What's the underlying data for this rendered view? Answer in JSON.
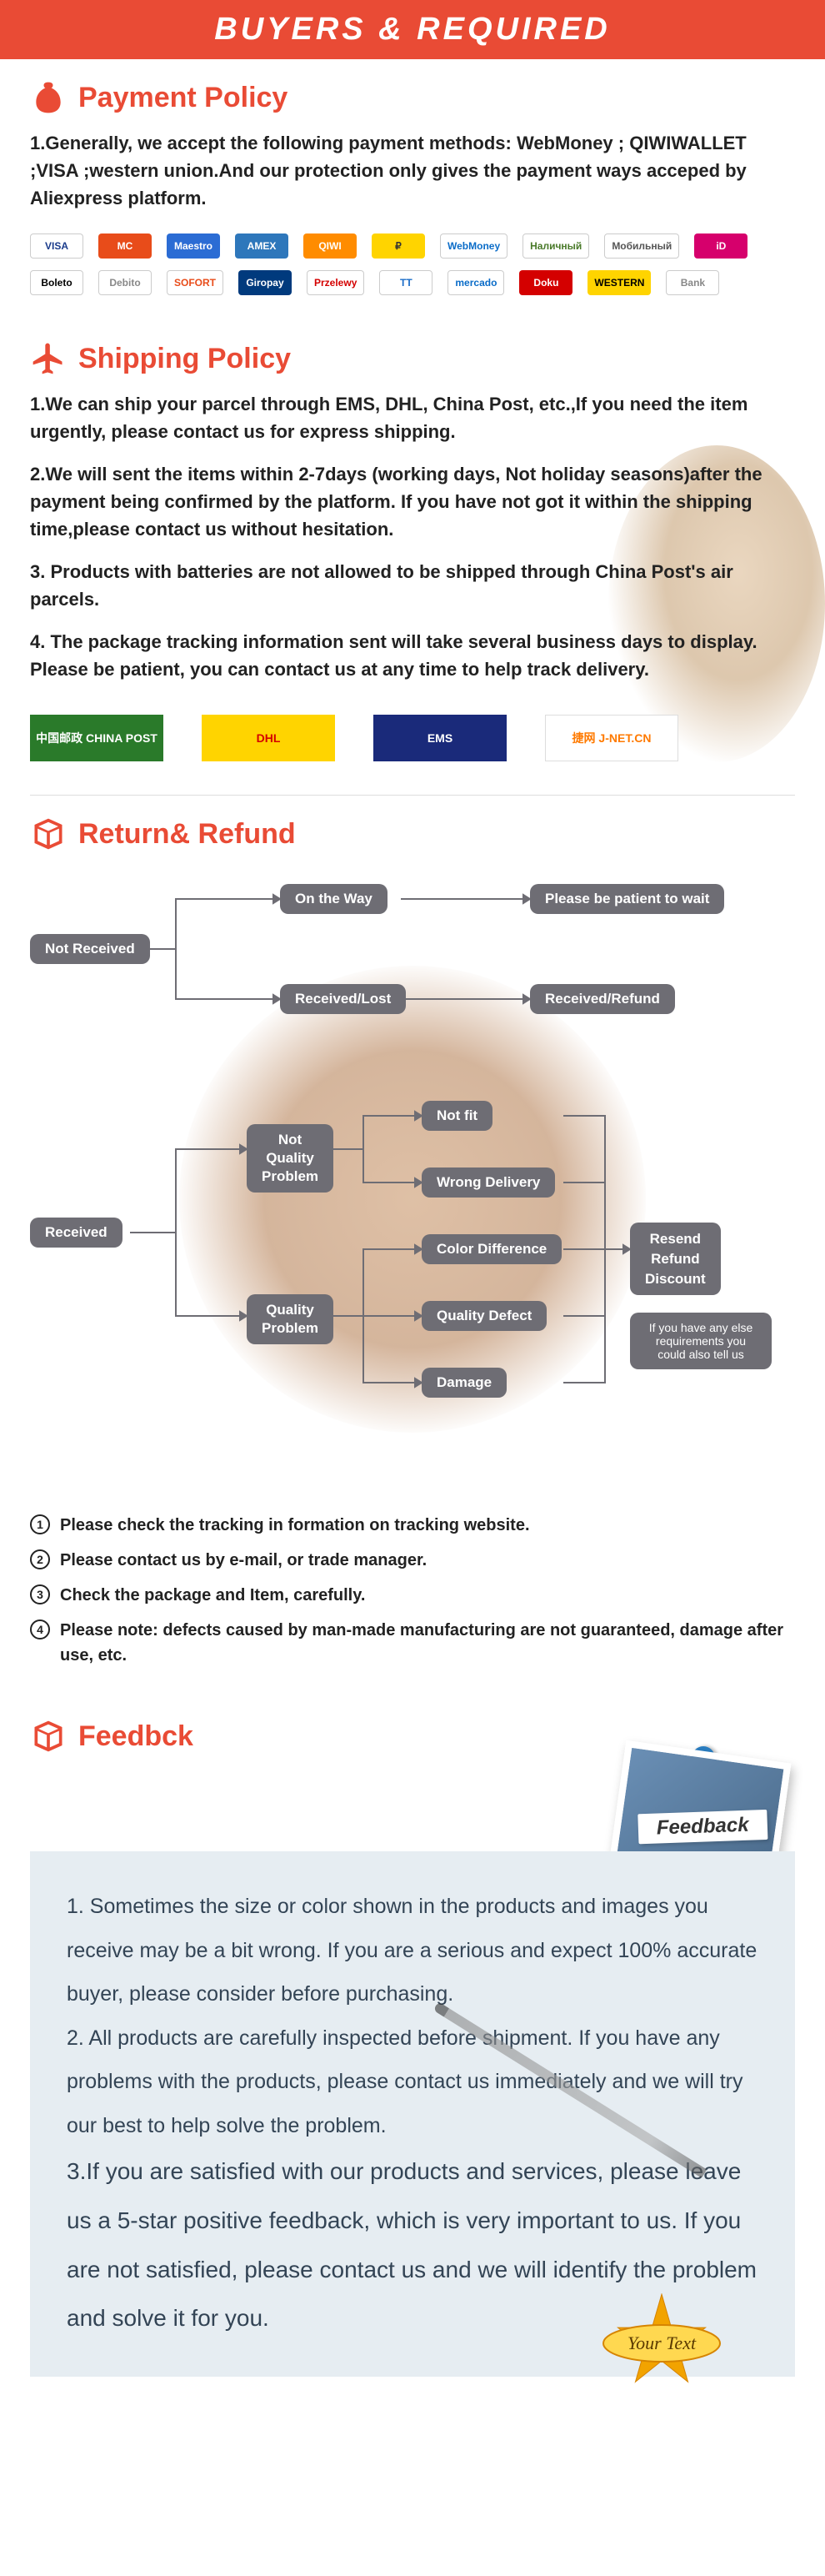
{
  "banner": "BUYERS & REQUIRED",
  "payment": {
    "title": "Payment Policy",
    "text": "1.Generally, we accept the following payment methods: WebMoney ; QIWIWALLET ;VISA ;western union.And our protection only gives the payment ways acceped by Aliexpress platform.",
    "logos": [
      {
        "t": "VISA",
        "bg": "#fff",
        "fg": "#1a3b8b"
      },
      {
        "t": "MC",
        "bg": "#e84c1a",
        "fg": "#fff"
      },
      {
        "t": "Maestro",
        "bg": "#2b6cd4",
        "fg": "#fff"
      },
      {
        "t": "AMEX",
        "bg": "#2e77bb",
        "fg": "#fff"
      },
      {
        "t": "QIWI",
        "bg": "#ff8c00",
        "fg": "#fff"
      },
      {
        "t": "₽",
        "bg": "#ffd400",
        "fg": "#333"
      },
      {
        "t": "WebMoney",
        "bg": "#fff",
        "fg": "#0a6cc8"
      },
      {
        "t": "Наличный",
        "bg": "#fff",
        "fg": "#4a7a2a"
      },
      {
        "t": "Мобильный",
        "bg": "#fff",
        "fg": "#555"
      },
      {
        "t": "iD",
        "bg": "#d6006c",
        "fg": "#fff"
      },
      {
        "t": "Boleto",
        "bg": "#fff",
        "fg": "#000"
      },
      {
        "t": "Debito",
        "bg": "#fff",
        "fg": "#888"
      },
      {
        "t": "SOFORT",
        "bg": "#fff",
        "fg": "#e84c1a"
      },
      {
        "t": "Giropay",
        "bg": "#003a7d",
        "fg": "#fff"
      },
      {
        "t": "Przelewy",
        "bg": "#fff",
        "fg": "#d40000"
      },
      {
        "t": "TT",
        "bg": "#fff",
        "fg": "#1a6cc8"
      },
      {
        "t": "mercado",
        "bg": "#fff",
        "fg": "#0a6cc8"
      },
      {
        "t": "Doku",
        "bg": "#d40000",
        "fg": "#fff"
      },
      {
        "t": "WESTERN",
        "bg": "#ffd400",
        "fg": "#000"
      },
      {
        "t": "Bank",
        "bg": "#fff",
        "fg": "#888"
      }
    ]
  },
  "shipping": {
    "title": "Shipping Policy",
    "p1": "1.We can ship your parcel through EMS, DHL, China Post, etc.,If  you need the item urgently, please contact us for express shipping.",
    "p2": "2.We will sent the items within 2-7days (working days, Not holiday seasons)after the payment being confirmed by the platform. If you have not got it within the shipping time,please contact us without hesitation.",
    "p3": "3. Products with batteries are not allowed to be shipped through China  Post's air parcels.",
    "p4": "4. The package tracking information sent will take several business days to display. Please be patient, you can contact us at any time to help track delivery.",
    "carriers": [
      {
        "t": "中国邮政 CHINA POST",
        "bg": "#2a7a2a"
      },
      {
        "t": "DHL",
        "bg": "#ffd400",
        "fg": "#d40000"
      },
      {
        "t": "EMS",
        "bg": "#1a2a7a"
      },
      {
        "t": "捷网 J-NET.CN",
        "bg": "#fff",
        "fg": "#ff7a00"
      }
    ]
  },
  "return": {
    "title": "Return& Refund",
    "nodes": {
      "not_received": "Not Received",
      "on_way": "On the Way",
      "patient": "Please be patient to wait",
      "rec_lost": "Received/Lost",
      "rec_refund": "Received/Refund",
      "received": "Received",
      "not_qp": "Not\nQuality\nProblem",
      "qp": "Quality\nProblem",
      "not_fit": "Not fit",
      "wrong": "Wrong Delivery",
      "color": "Color Difference",
      "defect": "Quality Defect",
      "damage": "Damage",
      "resend": "Resend\nRefund\nDiscount",
      "note": "If you have any else requirements you could also tell us"
    },
    "list": [
      "Please check the tracking in formation on tracking website.",
      "Please contact us by e-mail, or trade manager.",
      "Check the package and Item, carefully.",
      "Please note: defects caused by man-made manufacturing are not guaranteed, damage after use, etc."
    ]
  },
  "feedback": {
    "title": "Feedbck",
    "photo_label": "Feedback",
    "p1": "1. Sometimes the size or color shown in the products and images you receive may be a bit wrong. If you are a serious and expect 100% accurate buyer, please consider before purchasing.",
    "p2": "2. All products are carefully inspected before shipment. If you have any problems with the products, please contact us immediately and we will try our best to help solve the problem.",
    "p3": "3.If you are satisfied with our products and services, please leave us a 5-star positive feedback, which is very important to us. If you are not satisfied, please contact us and we will identify the problem and solve it for you.",
    "badge": "Your Text"
  },
  "colors": {
    "accent": "#e94b35",
    "node": "#6e6d74",
    "feedback_bg": "#e6edf2",
    "feedback_fg": "#345"
  }
}
